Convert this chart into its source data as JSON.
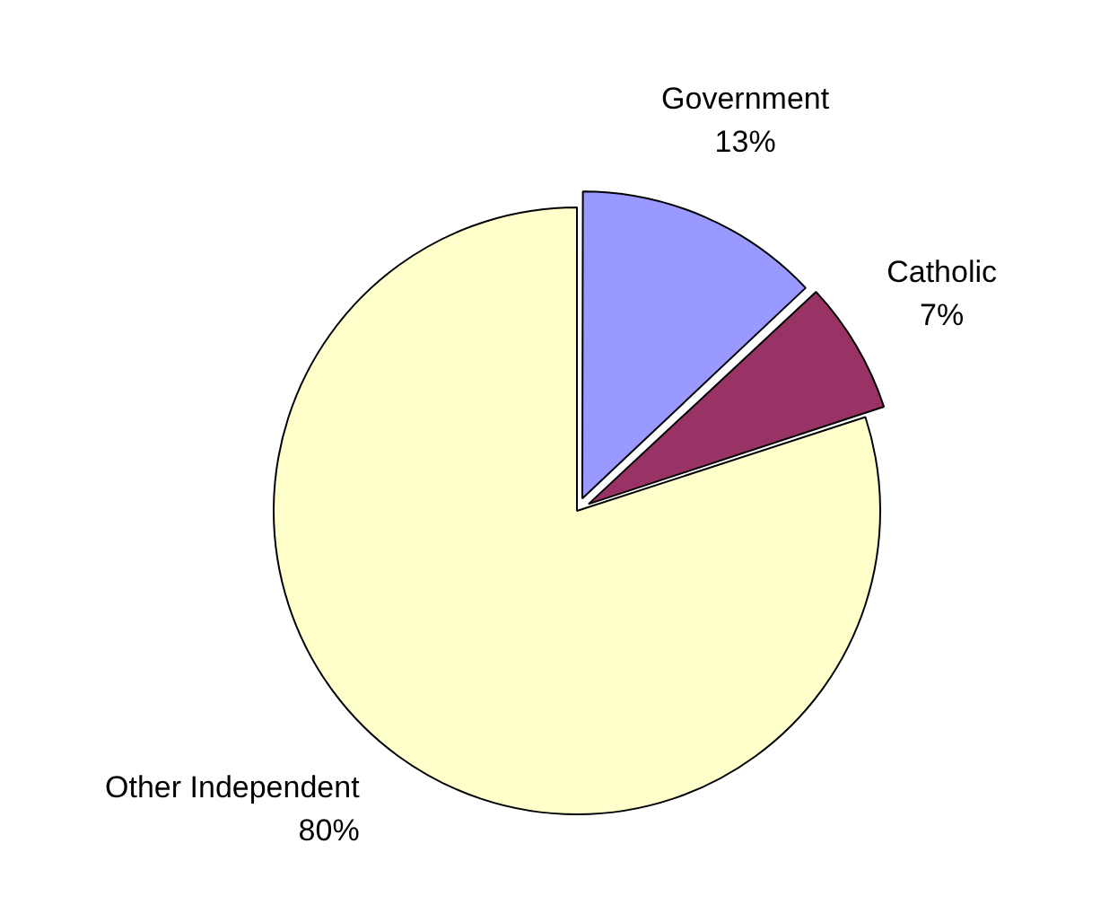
{
  "chart_data": {
    "type": "pie",
    "categories": [
      "Government",
      "Catholic",
      "Other Independent"
    ],
    "values": [
      13,
      7,
      80
    ],
    "colors": [
      "#9999ff",
      "#993366",
      "#ffffcc"
    ],
    "value_labels": [
      "13%",
      "7%",
      "80%"
    ],
    "legend": false
  }
}
